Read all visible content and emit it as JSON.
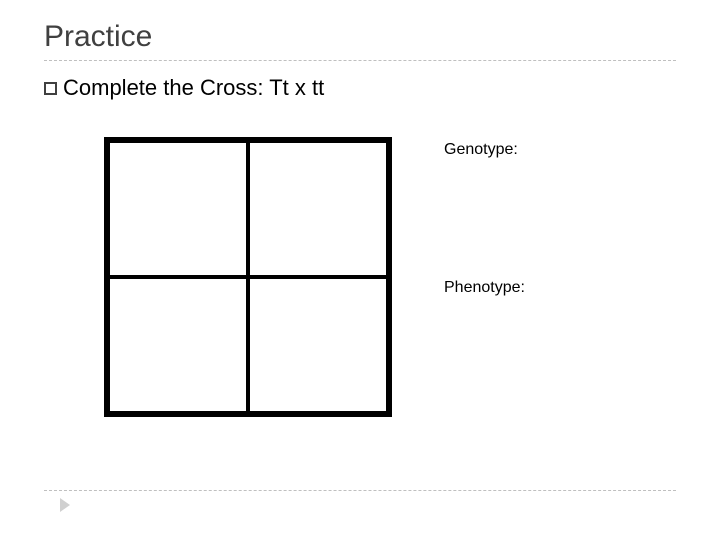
{
  "title": "Practice",
  "bullet": {
    "text": "Complete the Cross: Tt x tt"
  },
  "labels": {
    "genotype": "Genotype:",
    "phenotype": "Phenotype:"
  },
  "punnett": {
    "rows": 2,
    "cols": 2,
    "border_color": "#000000",
    "border_width_outer": 4,
    "border_width_inner": 2,
    "background": "#ffffff"
  },
  "colors": {
    "title_text": "#404040",
    "body_text": "#000000",
    "divider": "#bfbfbf",
    "chevron": "#d0d0d0",
    "page_background": "#ffffff"
  },
  "typography": {
    "title_fontsize": 30,
    "bullet_fontsize": 22,
    "label_fontsize": 16
  }
}
